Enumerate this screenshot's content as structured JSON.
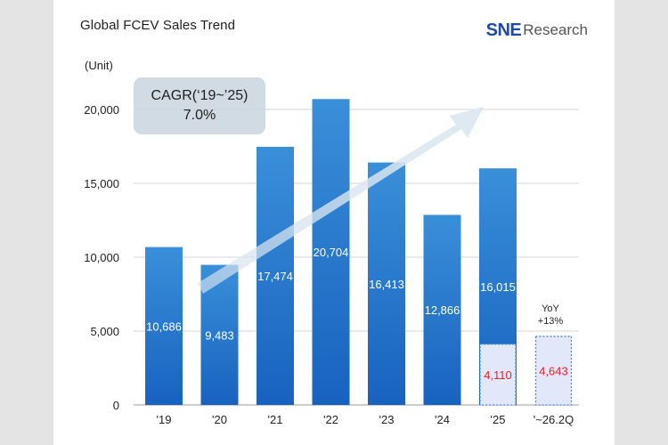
{
  "header": {
    "title": "Global FCEV Sales Trend",
    "logo_brand": "SNE",
    "logo_suffix": "Research"
  },
  "annotations": {
    "cagr_line1": "CAGR(‘19~’25)",
    "cagr_line2": "7.0%",
    "yoy_line1": "YoY",
    "yoy_line2": "+13%"
  },
  "colors": {
    "bar_top": "#3a8fd9",
    "bar_bottom": "#1762bf",
    "partial_fill": "#e3e7fa",
    "partial_border": "#4a86d8",
    "highlight_red": "#e8202a"
  },
  "chart_data": {
    "type": "bar",
    "title": "Global FCEV Sales Trend",
    "ylabel": "(Unit)",
    "categories": [
      "'19",
      "'20",
      "'21",
      "'22",
      "'23",
      "'24",
      "'25",
      "'~26.2Q"
    ],
    "series": [
      {
        "values": [
          10686,
          9483,
          17474,
          20704,
          16413,
          12866,
          16015,
          null
        ]
      }
    ],
    "partial_values": {
      "'25": 4110,
      "'~26.2Q": 4643
    },
    "data_labels": [
      "10,686",
      "9,483",
      "17,474",
      "20,704",
      "16,413",
      "12,866",
      "16,015"
    ],
    "partial_labels": [
      "4,110",
      "4,643"
    ],
    "y_ticks": [
      "0",
      "5,000",
      "10,000",
      "15,000",
      "20,000"
    ],
    "y_tick_values": [
      0,
      5000,
      10000,
      15000,
      20000
    ],
    "ylim": [
      0,
      20000
    ],
    "grid": true,
    "legend": "none"
  }
}
